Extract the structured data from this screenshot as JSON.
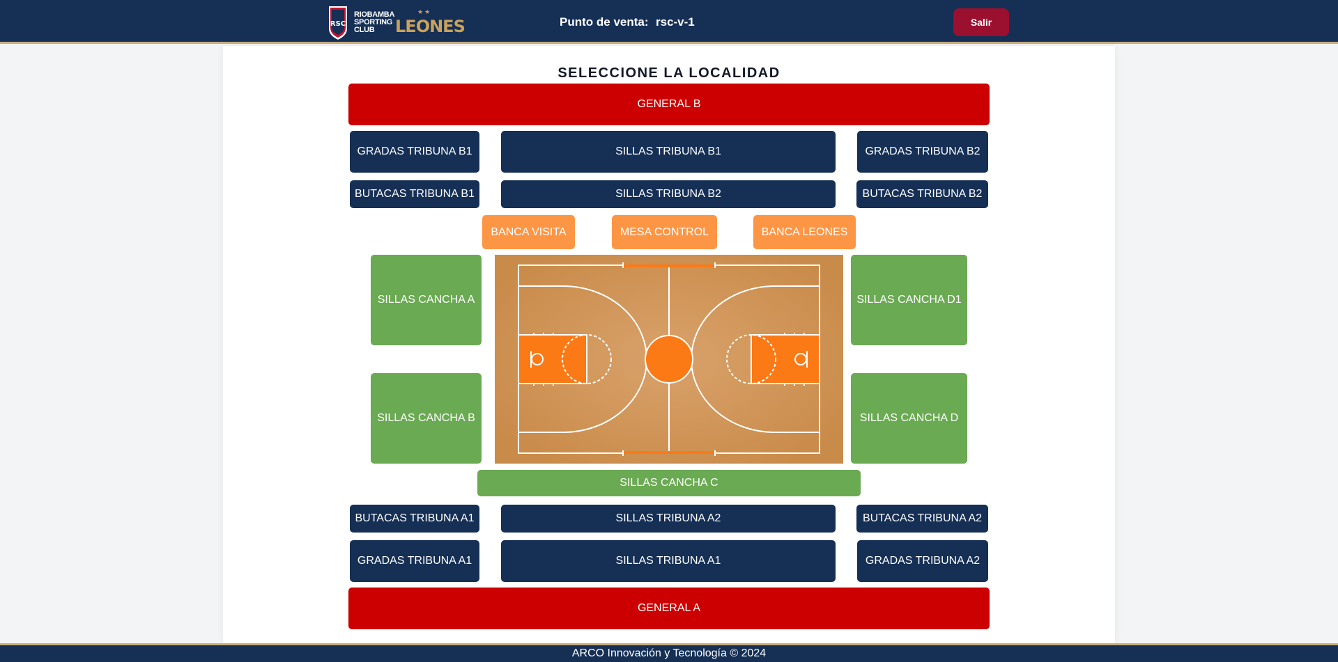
{
  "header": {
    "club_lines": [
      "RIOBAMBA",
      "SPORTING",
      "CLUB"
    ],
    "badge_text": "RSC",
    "brand": "LEONES",
    "brand_stars": "★★",
    "pos_label": "Punto de venta:",
    "pos_value": "rsc-v-1",
    "logout_label": "Salir"
  },
  "page": {
    "title": "SELECCIONE LA LOCALIDAD"
  },
  "sections": {
    "general_b": "GENERAL B",
    "gradas_tribuna_b1": "GRADAS TRIBUNA B1",
    "sillas_tribuna_b1": "SILLAS TRIBUNA B1",
    "gradas_tribuna_b2": "GRADAS TRIBUNA B2",
    "butacas_tribuna_b1": "BUTACAS TRIBUNA B1",
    "sillas_tribuna_b2": "SILLAS TRIBUNA B2",
    "butacas_tribuna_b2": "BUTACAS TRIBUNA B2",
    "banca_visita": "BANCA VISITA",
    "mesa_control": "MESA CONTROL",
    "banca_leones": "BANCA LEONES",
    "sillas_cancha_a": "SILLAS CANCHA A",
    "sillas_cancha_b": "SILLAS CANCHA B",
    "sillas_cancha_d1": "SILLAS CANCHA D1",
    "sillas_cancha_d": "SILLAS CANCHA D",
    "sillas_cancha_c": "SILLAS CANCHA C",
    "butacas_tribuna_a1": "BUTACAS TRIBUNA A1",
    "sillas_tribuna_a2": "SILLAS TRIBUNA A2",
    "butacas_tribuna_a2": "BUTACAS TRIBUNA A2",
    "gradas_tribuna_a1": "GRADAS TRIBUNA A1",
    "sillas_tribuna_a1": "SILLAS TRIBUNA A1",
    "gradas_tribuna_a2": "GRADAS TRIBUNA A2",
    "general_a": "GENERAL A"
  },
  "footer": {
    "text": "ARCO Innovación y Tecnología © 2024"
  },
  "colors": {
    "navy": "#152f55",
    "red": "#cc0000",
    "orange": "#fd9644",
    "green": "#6aaa52",
    "logout": "#9b102f",
    "gold": "#c9a25c"
  }
}
